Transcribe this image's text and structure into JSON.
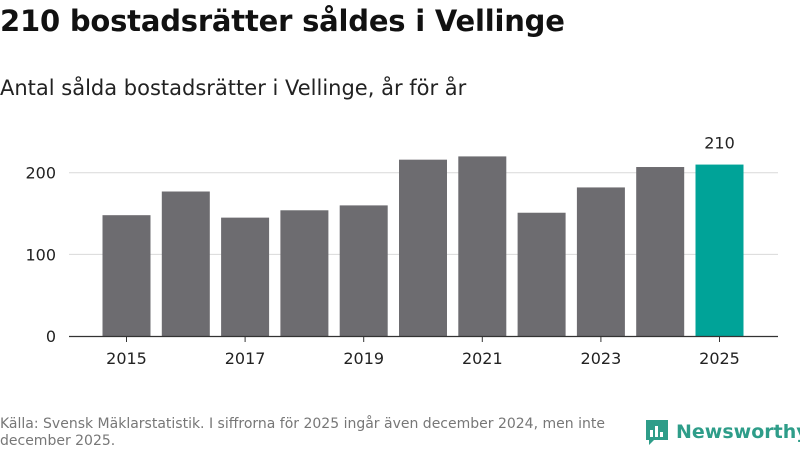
{
  "title": "210 bostadsrätter såldes i Vellinge",
  "subtitle": "Antal sålda bostadsrätter i Vellinge, år för år",
  "source": "Källa: Svensk Mäklarstatistik. I siffrorna för 2025 ingår även december 2024, men inte december 2025.",
  "logo": {
    "name": "Newsworthy",
    "icon": "bar-chart-logo-icon"
  },
  "colors": {
    "bar": "#6d6c70",
    "highlight": "#00a398",
    "grid": "#d9d9d9",
    "axis": "#333333",
    "text": "#222222"
  },
  "chart_data": {
    "type": "bar",
    "title": "Antal sålda bostadsrätter i Vellinge, år för år",
    "categories": [
      "2015",
      "2016",
      "2017",
      "2018",
      "2019",
      "2020",
      "2021",
      "2022",
      "2023",
      "2024",
      "2025"
    ],
    "values": [
      148,
      177,
      145,
      154,
      160,
      216,
      220,
      151,
      182,
      207,
      210
    ],
    "highlight_index": 10,
    "highlight_label": "210",
    "x_tick_labels": [
      "2015",
      "2017",
      "2019",
      "2021",
      "2023",
      "2025"
    ],
    "y_ticks": [
      0,
      100,
      200
    ],
    "ylim": [
      0,
      245
    ],
    "grid": true,
    "xlabel": "",
    "ylabel": ""
  }
}
